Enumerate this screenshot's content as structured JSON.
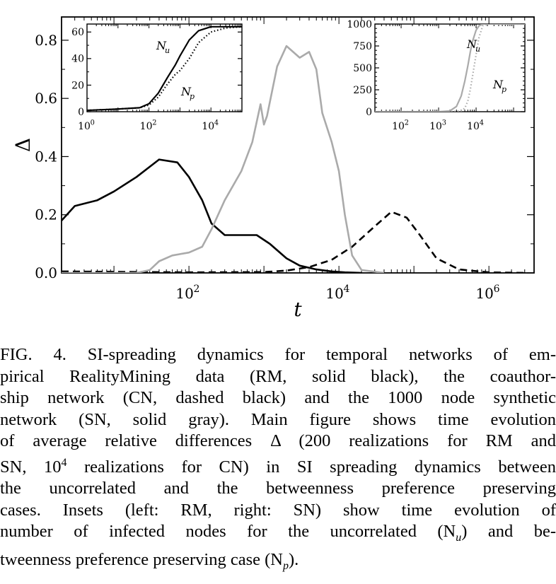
{
  "chart_data": [
    {
      "type": "line",
      "xlabel": "t",
      "ylabel": "Δ",
      "xscale": "log",
      "xlim": [
        2.0,
        4000000
      ],
      "ylim": [
        0,
        0.88
      ],
      "x_ticks": [
        100,
        10000,
        1000000
      ],
      "x_tick_labels": [
        "10",
        "10",
        "10"
      ],
      "x_tick_exponents": [
        "2",
        "4",
        "6"
      ],
      "y_ticks": [
        0.0,
        0.2,
        0.4,
        0.6,
        0.8
      ],
      "y_tick_labels": [
        "0.0",
        "0.2",
        "0.4",
        "0.6",
        "0.8"
      ],
      "grid": false,
      "series": [
        {
          "style": "solid",
          "color": "#000000",
          "x": [
            2,
            3,
            6,
            10,
            20,
            40,
            70,
            100,
            150,
            200,
            300,
            500,
            800,
            1200,
            2000,
            3000,
            5000,
            8000,
            12000,
            20000
          ],
          "values": [
            0.18,
            0.23,
            0.25,
            0.28,
            0.33,
            0.39,
            0.38,
            0.33,
            0.25,
            0.17,
            0.13,
            0.13,
            0.13,
            0.1,
            0.05,
            0.025,
            0.012,
            0.005,
            0.002,
            0.0
          ]
        },
        {
          "style": "dashed",
          "color": "#000000",
          "x": [
            2,
            100,
            1000,
            2000,
            4000,
            8000,
            15000,
            30000,
            50000,
            80000,
            120000,
            200000,
            400000,
            1000000,
            3000000
          ],
          "values": [
            0.005,
            0.002,
            0.003,
            0.008,
            0.02,
            0.045,
            0.09,
            0.16,
            0.21,
            0.19,
            0.13,
            0.05,
            0.012,
            0.002,
            0.0
          ]
        },
        {
          "style": "solid",
          "color": "#aaaaaa",
          "x": [
            2,
            20,
            30,
            40,
            60,
            100,
            150,
            200,
            300,
            500,
            700,
            900,
            1000,
            1100,
            1500,
            2000,
            3000,
            4000,
            5000,
            6000,
            8000,
            10000,
            12000,
            15000,
            20000,
            40000
          ],
          "values": [
            0.0,
            0.0,
            0.01,
            0.04,
            0.06,
            0.07,
            0.09,
            0.15,
            0.25,
            0.35,
            0.45,
            0.58,
            0.51,
            0.54,
            0.71,
            0.78,
            0.74,
            0.76,
            0.7,
            0.55,
            0.45,
            0.35,
            0.2,
            0.06,
            0.01,
            0.0
          ]
        }
      ]
    },
    {
      "type": "line",
      "xscale": "log",
      "xlim": [
        1,
        100000
      ],
      "ylim": [
        0,
        66
      ],
      "x_ticks": [
        1,
        100,
        10000
      ],
      "x_tick_labels": [
        "10",
        "10",
        "10"
      ],
      "x_tick_exponents": [
        "0",
        "2",
        "4"
      ],
      "y_ticks": [
        0,
        20,
        40,
        60
      ],
      "y_tick_labels": [
        "0",
        "20",
        "40",
        "60"
      ],
      "annotations": [
        {
          "text": "N",
          "sub": "u"
        },
        {
          "text": "N",
          "sub": "p"
        }
      ],
      "series": [
        {
          "label": "N_u",
          "style": "solid",
          "color": "#000000",
          "x": [
            1,
            10,
            50,
            100,
            200,
            400,
            700,
            1000,
            2000,
            4000,
            10000,
            30000,
            100000
          ],
          "values": [
            1,
            2,
            3,
            6,
            14,
            26,
            35,
            42,
            54,
            61,
            64,
            64,
            64
          ]
        },
        {
          "label": "N_p",
          "style": "dotted",
          "color": "#000000",
          "x": [
            1,
            10,
            50,
            100,
            200,
            400,
            700,
            1000,
            2000,
            4000,
            10000,
            30000,
            100000
          ],
          "values": [
            1,
            2,
            3,
            5,
            11,
            21,
            28,
            31,
            40,
            52,
            60,
            63,
            64
          ]
        }
      ]
    },
    {
      "type": "line",
      "xscale": "log",
      "xlim": [
        20,
        200000
      ],
      "ylim": [
        0,
        1000
      ],
      "x_ticks": [
        100,
        1000,
        10000
      ],
      "x_tick_labels": [
        "10",
        "10",
        "10"
      ],
      "x_tick_exponents": [
        "2",
        "3",
        "4"
      ],
      "y_ticks": [
        0,
        250,
        500,
        750,
        1000
      ],
      "y_tick_labels": [
        "0",
        "250",
        "500",
        "750",
        "1000"
      ],
      "annotations": [
        {
          "text": "N",
          "sub": "u"
        },
        {
          "text": "N",
          "sub": "p"
        }
      ],
      "series": [
        {
          "label": "N_u",
          "style": "solid",
          "color": "#aaaaaa",
          "x": [
            20,
            1000,
            2000,
            3000,
            4000,
            5000,
            6000,
            7000,
            8000,
            10000,
            12000,
            15000,
            20000,
            200000
          ],
          "values": [
            0,
            0,
            10,
            60,
            180,
            350,
            520,
            680,
            800,
            930,
            980,
            1000,
            1000,
            1000
          ]
        },
        {
          "label": "N_p",
          "style": "dotted",
          "color": "#aaaaaa",
          "x": [
            20,
            2000,
            4000,
            5000,
            6000,
            7000,
            8000,
            10000,
            12000,
            15000,
            20000,
            200000
          ],
          "values": [
            0,
            0,
            10,
            40,
            120,
            250,
            400,
            650,
            850,
            980,
            1000,
            1000
          ]
        }
      ]
    }
  ],
  "caption": {
    "lines": [
      "FIG. 4. SI-spreading dynamics for temporal networks of em-",
      "pirical RealityMining data (RM, solid black), the coauthor-",
      "ship network (CN, dashed black) and the 1000 node synthetic",
      "network (SN, solid gray). Main figure shows time evolution",
      "of average relative differences Δ (200 realizations for RM and",
      "SN, 10",
      "the uncorrelated and the betweenness preference preserving",
      "cases. Insets (left: RM, right: SN) show time evolution of",
      "number of infected nodes for the uncorrelated (N",
      "tweenness preference preserving case (N"
    ],
    "line6_sup": "4",
    "line6_rest": " realizations for CN) in SI spreading dynamics between",
    "line9_sub": "u",
    "line9_rest": ") and be-",
    "line10_sub": "p",
    "line10_rest": ")."
  }
}
